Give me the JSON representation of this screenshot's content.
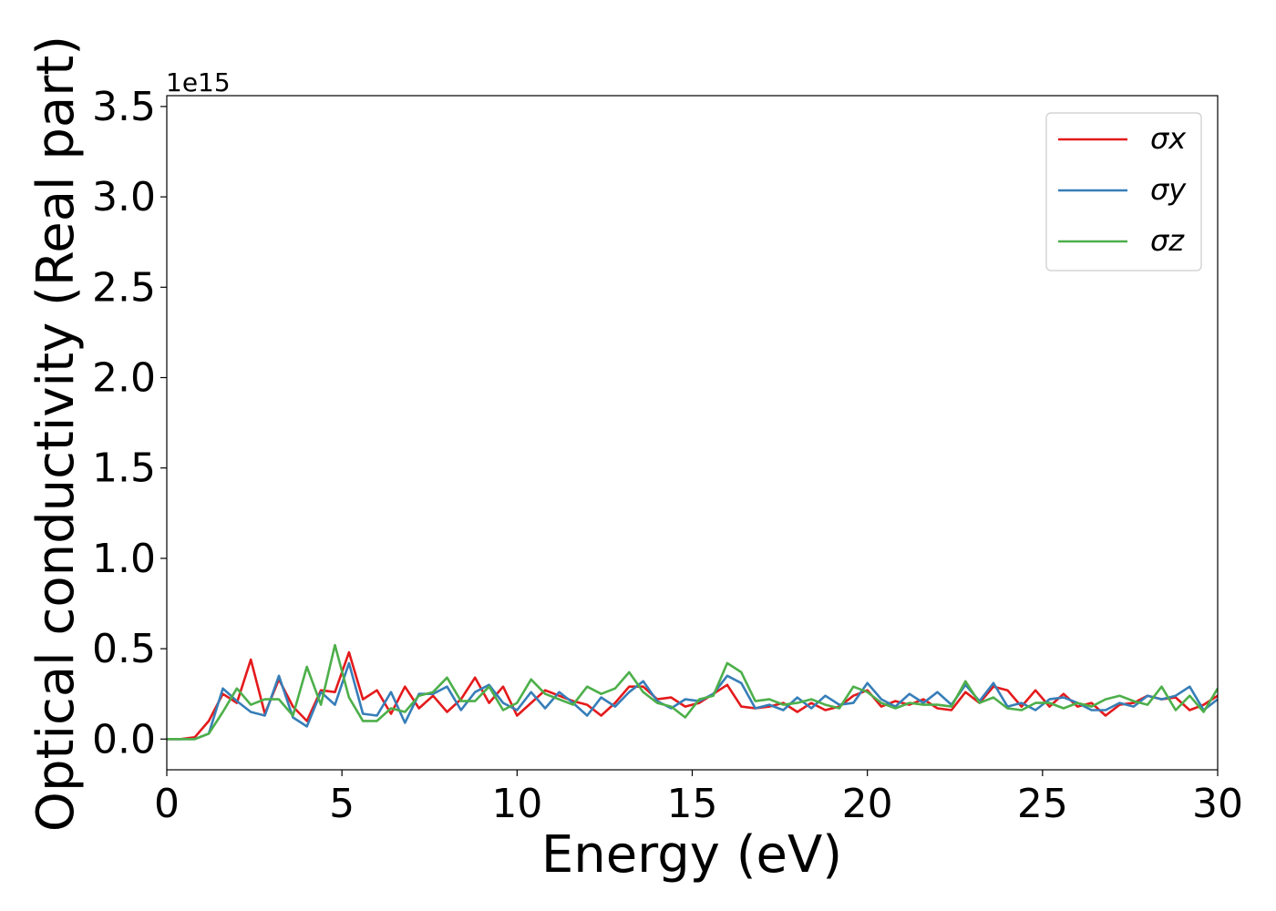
{
  "chart_data": {
    "type": "line",
    "xlabel": "Energy (eV)",
    "ylabel": "Optical conductivity (Real part)",
    "y_offset_label": "1e15",
    "y_multiplier": 1000000000000000.0,
    "xlim": [
      0,
      30
    ],
    "ylim": [
      -0.17,
      3.56
    ],
    "x_ticks": [
      0,
      5,
      10,
      15,
      20,
      25,
      30
    ],
    "x_tick_labels": [
      "0",
      "5",
      "10",
      "15",
      "20",
      "25",
      "30"
    ],
    "y_ticks": [
      0,
      0.5,
      1.0,
      1.5,
      2.0,
      2.5,
      3.0,
      3.5
    ],
    "y_tick_labels": [
      "0.0",
      "0.5",
      "1.0",
      "1.5",
      "2.0",
      "2.5",
      "3.0",
      "3.5"
    ],
    "grid": false,
    "legend_position": "top-right",
    "x": [
      0.0,
      0.4,
      0.8,
      1.2,
      1.6,
      2.0,
      2.4,
      2.8,
      3.2,
      3.6,
      4.0,
      4.4,
      4.8,
      5.2,
      5.6,
      6.0,
      6.4,
      6.8,
      7.2,
      7.6,
      8.0,
      8.4,
      8.8,
      9.2,
      9.6,
      10.0,
      10.4,
      10.8,
      11.2,
      11.6,
      12.0,
      12.4,
      12.8,
      13.2,
      13.6,
      14.0,
      14.4,
      14.8,
      15.2,
      15.6,
      16.0,
      16.4,
      16.8,
      17.2,
      17.6,
      18.0,
      18.4,
      18.8,
      19.2,
      19.6,
      20.0,
      20.4,
      20.8,
      21.2,
      21.6,
      22.0,
      22.4,
      22.8,
      23.2,
      23.6,
      24.0,
      24.4,
      24.8,
      25.2,
      25.6,
      26.0,
      26.4,
      26.8,
      27.2,
      27.6,
      28.0,
      28.4,
      28.8,
      29.2,
      29.6,
      30.0
    ],
    "series": [
      {
        "name": "σx",
        "color": "#e41a1c",
        "values": [
          0.0,
          0.0,
          0.01,
          0.1,
          0.25,
          0.2,
          0.44,
          0.14,
          0.33,
          0.18,
          0.1,
          0.27,
          0.26,
          0.48,
          0.22,
          0.27,
          0.14,
          0.29,
          0.17,
          0.24,
          0.15,
          0.22,
          0.34,
          0.2,
          0.29,
          0.13,
          0.2,
          0.27,
          0.24,
          0.21,
          0.19,
          0.13,
          0.2,
          0.29,
          0.29,
          0.22,
          0.23,
          0.18,
          0.2,
          0.25,
          0.3,
          0.18,
          0.17,
          0.18,
          0.2,
          0.15,
          0.2,
          0.16,
          0.18,
          0.24,
          0.27,
          0.18,
          0.21,
          0.19,
          0.22,
          0.17,
          0.16,
          0.26,
          0.2,
          0.29,
          0.27,
          0.18,
          0.27,
          0.18,
          0.25,
          0.18,
          0.2,
          0.13,
          0.19,
          0.2,
          0.24,
          0.22,
          0.23,
          0.16,
          0.19,
          0.24
        ]
      },
      {
        "name": "σy",
        "color": "#377eb8",
        "values": [
          0.0,
          0.0,
          0.0,
          0.03,
          0.28,
          0.21,
          0.15,
          0.13,
          0.35,
          0.12,
          0.07,
          0.26,
          0.19,
          0.42,
          0.14,
          0.13,
          0.26,
          0.09,
          0.25,
          0.25,
          0.29,
          0.16,
          0.26,
          0.3,
          0.2,
          0.16,
          0.26,
          0.17,
          0.26,
          0.2,
          0.13,
          0.23,
          0.18,
          0.26,
          0.32,
          0.21,
          0.17,
          0.22,
          0.21,
          0.25,
          0.35,
          0.31,
          0.17,
          0.19,
          0.16,
          0.23,
          0.17,
          0.24,
          0.19,
          0.2,
          0.31,
          0.22,
          0.18,
          0.25,
          0.2,
          0.26,
          0.19,
          0.3,
          0.21,
          0.31,
          0.18,
          0.2,
          0.16,
          0.22,
          0.23,
          0.2,
          0.16,
          0.16,
          0.2,
          0.18,
          0.24,
          0.22,
          0.24,
          0.29,
          0.16,
          0.22
        ]
      },
      {
        "name": "σz",
        "color": "#4daf4a",
        "values": [
          0.0,
          0.0,
          0.0,
          0.03,
          0.15,
          0.28,
          0.19,
          0.22,
          0.22,
          0.13,
          0.4,
          0.19,
          0.52,
          0.23,
          0.1,
          0.1,
          0.17,
          0.15,
          0.24,
          0.26,
          0.34,
          0.21,
          0.21,
          0.29,
          0.16,
          0.2,
          0.33,
          0.25,
          0.22,
          0.19,
          0.29,
          0.25,
          0.28,
          0.37,
          0.26,
          0.2,
          0.18,
          0.12,
          0.22,
          0.24,
          0.42,
          0.37,
          0.21,
          0.22,
          0.19,
          0.2,
          0.22,
          0.19,
          0.17,
          0.29,
          0.26,
          0.2,
          0.17,
          0.2,
          0.19,
          0.19,
          0.18,
          0.32,
          0.2,
          0.23,
          0.17,
          0.16,
          0.2,
          0.2,
          0.17,
          0.2,
          0.18,
          0.22,
          0.24,
          0.21,
          0.19,
          0.29,
          0.16,
          0.24,
          0.15,
          0.28
        ]
      }
    ]
  }
}
